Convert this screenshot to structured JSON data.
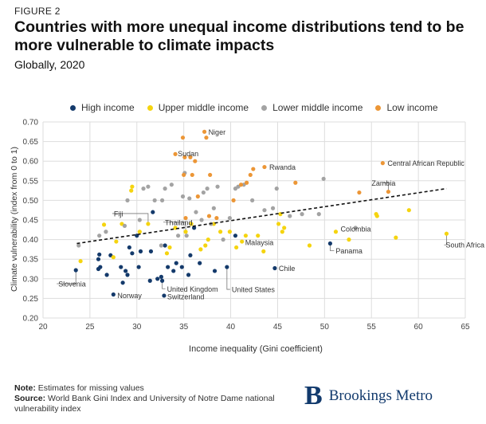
{
  "header": {
    "figure_label": "FIGURE 2",
    "title": "Countries with more unequal income distributions tend to be more vulnerable to climate impacts",
    "subtitle": "Globally, 2020"
  },
  "footer": {
    "note_label": "Note:",
    "note_text": "Estimates for missing values",
    "source_label": "Source:",
    "source_text": "World Bank Gini Index and University of Notre Dame national vulnerability index"
  },
  "brand": {
    "logo_letter": "B",
    "name": "Brookings Metro"
  },
  "colors": {
    "High income": "#143a6b",
    "Upper middle income": "#f5d40f",
    "Lower middle income": "#a3a3a3",
    "Low income": "#ec9636"
  },
  "chart_data": {
    "type": "scatter",
    "title": "Countries with more unequal income distributions tend to be more vulnerable to climate impacts",
    "subtitle": "Globally, 2020",
    "xlabel": "Income inequality (Gini coefficient)",
    "ylabel": "Climate vulnerability (index from 0 to 1)",
    "xlim": [
      20,
      65
    ],
    "ylim": [
      0.2,
      0.7
    ],
    "xticks": [
      20,
      25,
      30,
      35,
      40,
      45,
      50,
      55,
      60,
      65
    ],
    "yticks": [
      0.2,
      0.25,
      0.3,
      0.35,
      0.4,
      0.45,
      0.5,
      0.55,
      0.6,
      0.65,
      0.7
    ],
    "ytick_labels": [
      "0.20",
      "0.25",
      "0.30",
      "0.35",
      "0.40",
      "0.45",
      "0.50",
      "0.55",
      "0.60",
      "0.65",
      "0.70"
    ],
    "grid": true,
    "legend_position": "top",
    "trendline": {
      "style": "dashed",
      "x": [
        23.6,
        63
      ],
      "y": [
        0.39,
        0.53
      ]
    },
    "series": [
      {
        "name": "High income",
        "points": [
          [
            23.5,
            0.322
          ],
          [
            25.9,
            0.325
          ],
          [
            25.9,
            0.35
          ],
          [
            26,
            0.362
          ],
          [
            26.1,
            0.33
          ],
          [
            26.8,
            0.31
          ],
          [
            27.2,
            0.36
          ],
          [
            27.5,
            0.26
          ],
          [
            28.3,
            0.33
          ],
          [
            28.5,
            0.29
          ],
          [
            28.8,
            0.32
          ],
          [
            29,
            0.31
          ],
          [
            29.2,
            0.38
          ],
          [
            29.5,
            0.365
          ],
          [
            30,
            0.41
          ],
          [
            30.2,
            0.33
          ],
          [
            30.4,
            0.37
          ],
          [
            31.4,
            0.295
          ],
          [
            31.5,
            0.37
          ],
          [
            31.7,
            0.47
          ],
          [
            32.2,
            0.3
          ],
          [
            32.6,
            0.305
          ],
          [
            32.7,
            0.295
          ],
          [
            32.9,
            0.257
          ],
          [
            33,
            0.385
          ],
          [
            33.3,
            0.33
          ],
          [
            33.9,
            0.32
          ],
          [
            34.2,
            0.34
          ],
          [
            34.8,
            0.33
          ],
          [
            35.5,
            0.31
          ],
          [
            35.7,
            0.36
          ],
          [
            36.1,
            0.43
          ],
          [
            36.7,
            0.34
          ],
          [
            38.3,
            0.32
          ],
          [
            39.6,
            0.33
          ],
          [
            40.5,
            0.41
          ],
          [
            44.7,
            0.327
          ],
          [
            50.6,
            0.39
          ]
        ]
      },
      {
        "name": "Upper middle income",
        "points": [
          [
            24,
            0.345
          ],
          [
            26.5,
            0.438
          ],
          [
            27.5,
            0.355
          ],
          [
            27.8,
            0.395
          ],
          [
            28.4,
            0.44
          ],
          [
            29.4,
            0.525
          ],
          [
            29.5,
            0.535
          ],
          [
            30.3,
            0.42
          ],
          [
            31.2,
            0.44
          ],
          [
            33.2,
            0.365
          ],
          [
            33.5,
            0.38
          ],
          [
            34.1,
            0.43
          ],
          [
            35.2,
            0.42
          ],
          [
            35.8,
            0.44
          ],
          [
            36.8,
            0.375
          ],
          [
            37.3,
            0.385
          ],
          [
            37.6,
            0.4
          ],
          [
            38.2,
            0.44
          ],
          [
            38.9,
            0.42
          ],
          [
            39.9,
            0.42
          ],
          [
            40.6,
            0.38
          ],
          [
            41.2,
            0.395
          ],
          [
            41.6,
            0.41
          ],
          [
            42.9,
            0.41
          ],
          [
            43.5,
            0.37
          ],
          [
            45.1,
            0.44
          ],
          [
            45.3,
            0.465
          ],
          [
            45.5,
            0.42
          ],
          [
            45.7,
            0.43
          ],
          [
            48.4,
            0.385
          ],
          [
            51.2,
            0.42
          ],
          [
            52.6,
            0.4
          ],
          [
            55.5,
            0.465
          ],
          [
            55.6,
            0.46
          ],
          [
            57.6,
            0.405
          ],
          [
            59,
            0.475
          ],
          [
            63,
            0.415
          ]
        ]
      },
      {
        "name": "Lower middle income",
        "points": [
          [
            23.8,
            0.385
          ],
          [
            26,
            0.41
          ],
          [
            26.7,
            0.42
          ],
          [
            28.7,
            0.435
          ],
          [
            29,
            0.5
          ],
          [
            30.3,
            0.45
          ],
          [
            30.7,
            0.53
          ],
          [
            31.2,
            0.535
          ],
          [
            31.9,
            0.5
          ],
          [
            32.6,
            0.385
          ],
          [
            32.7,
            0.5
          ],
          [
            33,
            0.53
          ],
          [
            33.7,
            0.54
          ],
          [
            34.4,
            0.41
          ],
          [
            34.9,
            0.51
          ],
          [
            35.1,
            0.57
          ],
          [
            35.3,
            0.41
          ],
          [
            35.6,
            0.505
          ],
          [
            36.3,
            0.47
          ],
          [
            36.9,
            0.45
          ],
          [
            37.1,
            0.52
          ],
          [
            37.5,
            0.53
          ],
          [
            37.9,
            0.44
          ],
          [
            38.2,
            0.48
          ],
          [
            38.6,
            0.535
          ],
          [
            39.2,
            0.4
          ],
          [
            39.9,
            0.455
          ],
          [
            40.5,
            0.53
          ],
          [
            40.8,
            0.535
          ],
          [
            41.4,
            0.54
          ],
          [
            42.3,
            0.5
          ],
          [
            43.6,
            0.475
          ],
          [
            44.5,
            0.48
          ],
          [
            44.9,
            0.53
          ],
          [
            46.3,
            0.46
          ],
          [
            47.6,
            0.465
          ],
          [
            49.4,
            0.465
          ],
          [
            49.9,
            0.555
          ],
          [
            53.3,
            0.43
          ]
        ]
      },
      {
        "name": "Low income",
        "points": [
          [
            34.1,
            0.618
          ],
          [
            34.9,
            0.66
          ],
          [
            35,
            0.565
          ],
          [
            35.1,
            0.61
          ],
          [
            35.2,
            0.455
          ],
          [
            35.7,
            0.61
          ],
          [
            35.9,
            0.565
          ],
          [
            36.2,
            0.6
          ],
          [
            36.5,
            0.51
          ],
          [
            37.2,
            0.675
          ],
          [
            37.4,
            0.66
          ],
          [
            37.7,
            0.46
          ],
          [
            37.8,
            0.565
          ],
          [
            38.5,
            0.455
          ],
          [
            40.3,
            0.5
          ],
          [
            41.1,
            0.54
          ],
          [
            41.7,
            0.545
          ],
          [
            42.1,
            0.565
          ],
          [
            42.4,
            0.58
          ],
          [
            43.6,
            0.585
          ],
          [
            46.9,
            0.545
          ],
          [
            53.7,
            0.52
          ],
          [
            56.2,
            0.595
          ],
          [
            56.8,
            0.522
          ]
        ]
      }
    ],
    "annotations": [
      {
        "label": "Niger",
        "x": 37.2,
        "y": 0.675
      },
      {
        "label": "Sudan",
        "x": 34.1,
        "y": 0.618
      },
      {
        "label": "Rwanda",
        "x": 43.6,
        "y": 0.585
      },
      {
        "label": "Central African Republic",
        "x": 56.2,
        "y": 0.595
      },
      {
        "label": "Zambia",
        "x": 56.8,
        "y": 0.522
      },
      {
        "label": "Fiji",
        "x": 31.2,
        "y": 0.44
      },
      {
        "label": "Thailand",
        "x": 35.2,
        "y": 0.42
      },
      {
        "label": "Colombia",
        "x": 51.2,
        "y": 0.42
      },
      {
        "label": "Malaysia",
        "x": 41.2,
        "y": 0.395
      },
      {
        "label": "Panama",
        "x": 50.6,
        "y": 0.39
      },
      {
        "label": "South Africa",
        "x": 63,
        "y": 0.415
      },
      {
        "label": "Chile",
        "x": 44.7,
        "y": 0.327
      },
      {
        "label": "United States",
        "x": 39.6,
        "y": 0.33
      },
      {
        "label": "United Kingdom",
        "x": 32.7,
        "y": 0.295
      },
      {
        "label": "Slovenia",
        "x": 23.5,
        "y": 0.322
      },
      {
        "label": "Norway",
        "x": 27.5,
        "y": 0.26
      },
      {
        "label": "Switzerland",
        "x": 32.9,
        "y": 0.257
      }
    ]
  }
}
